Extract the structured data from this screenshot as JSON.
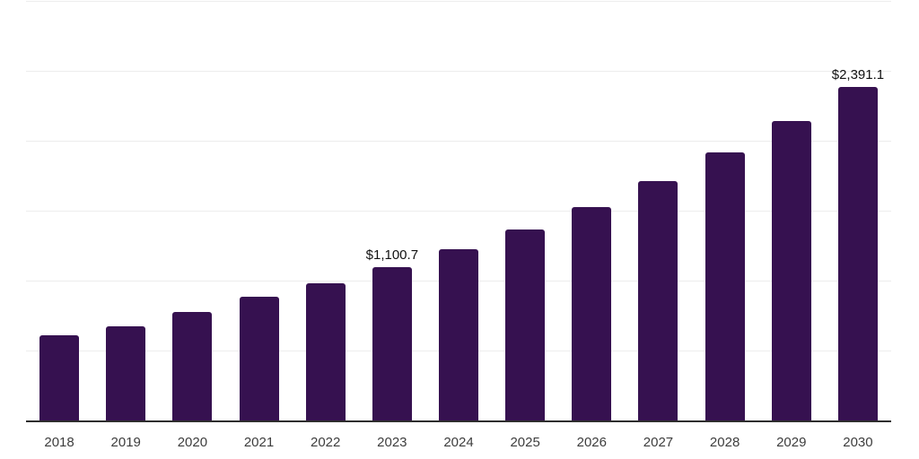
{
  "chart_data": {
    "type": "bar",
    "title": "",
    "xlabel": "",
    "ylabel": "",
    "categories": [
      "2018",
      "2019",
      "2020",
      "2021",
      "2022",
      "2023",
      "2024",
      "2025",
      "2026",
      "2027",
      "2028",
      "2029",
      "2030"
    ],
    "values": [
      615,
      680,
      780,
      890,
      985,
      1100.7,
      1230,
      1370,
      1535,
      1720,
      1925,
      2145,
      2391.1
    ],
    "point_labels": {
      "2023": "$1,100.7",
      "2030": "$2,391.1"
    },
    "ylim": [
      0,
      3000
    ],
    "gridline_step": 500,
    "grid": true,
    "legend": false,
    "y_tick_labels_visible": false,
    "colors": {
      "bar": "#361150",
      "grid": "#ededed",
      "axis": "#2e2e2e",
      "tick_label": "#3d3d3d",
      "data_label": "#111111",
      "background": "#ffffff"
    }
  }
}
